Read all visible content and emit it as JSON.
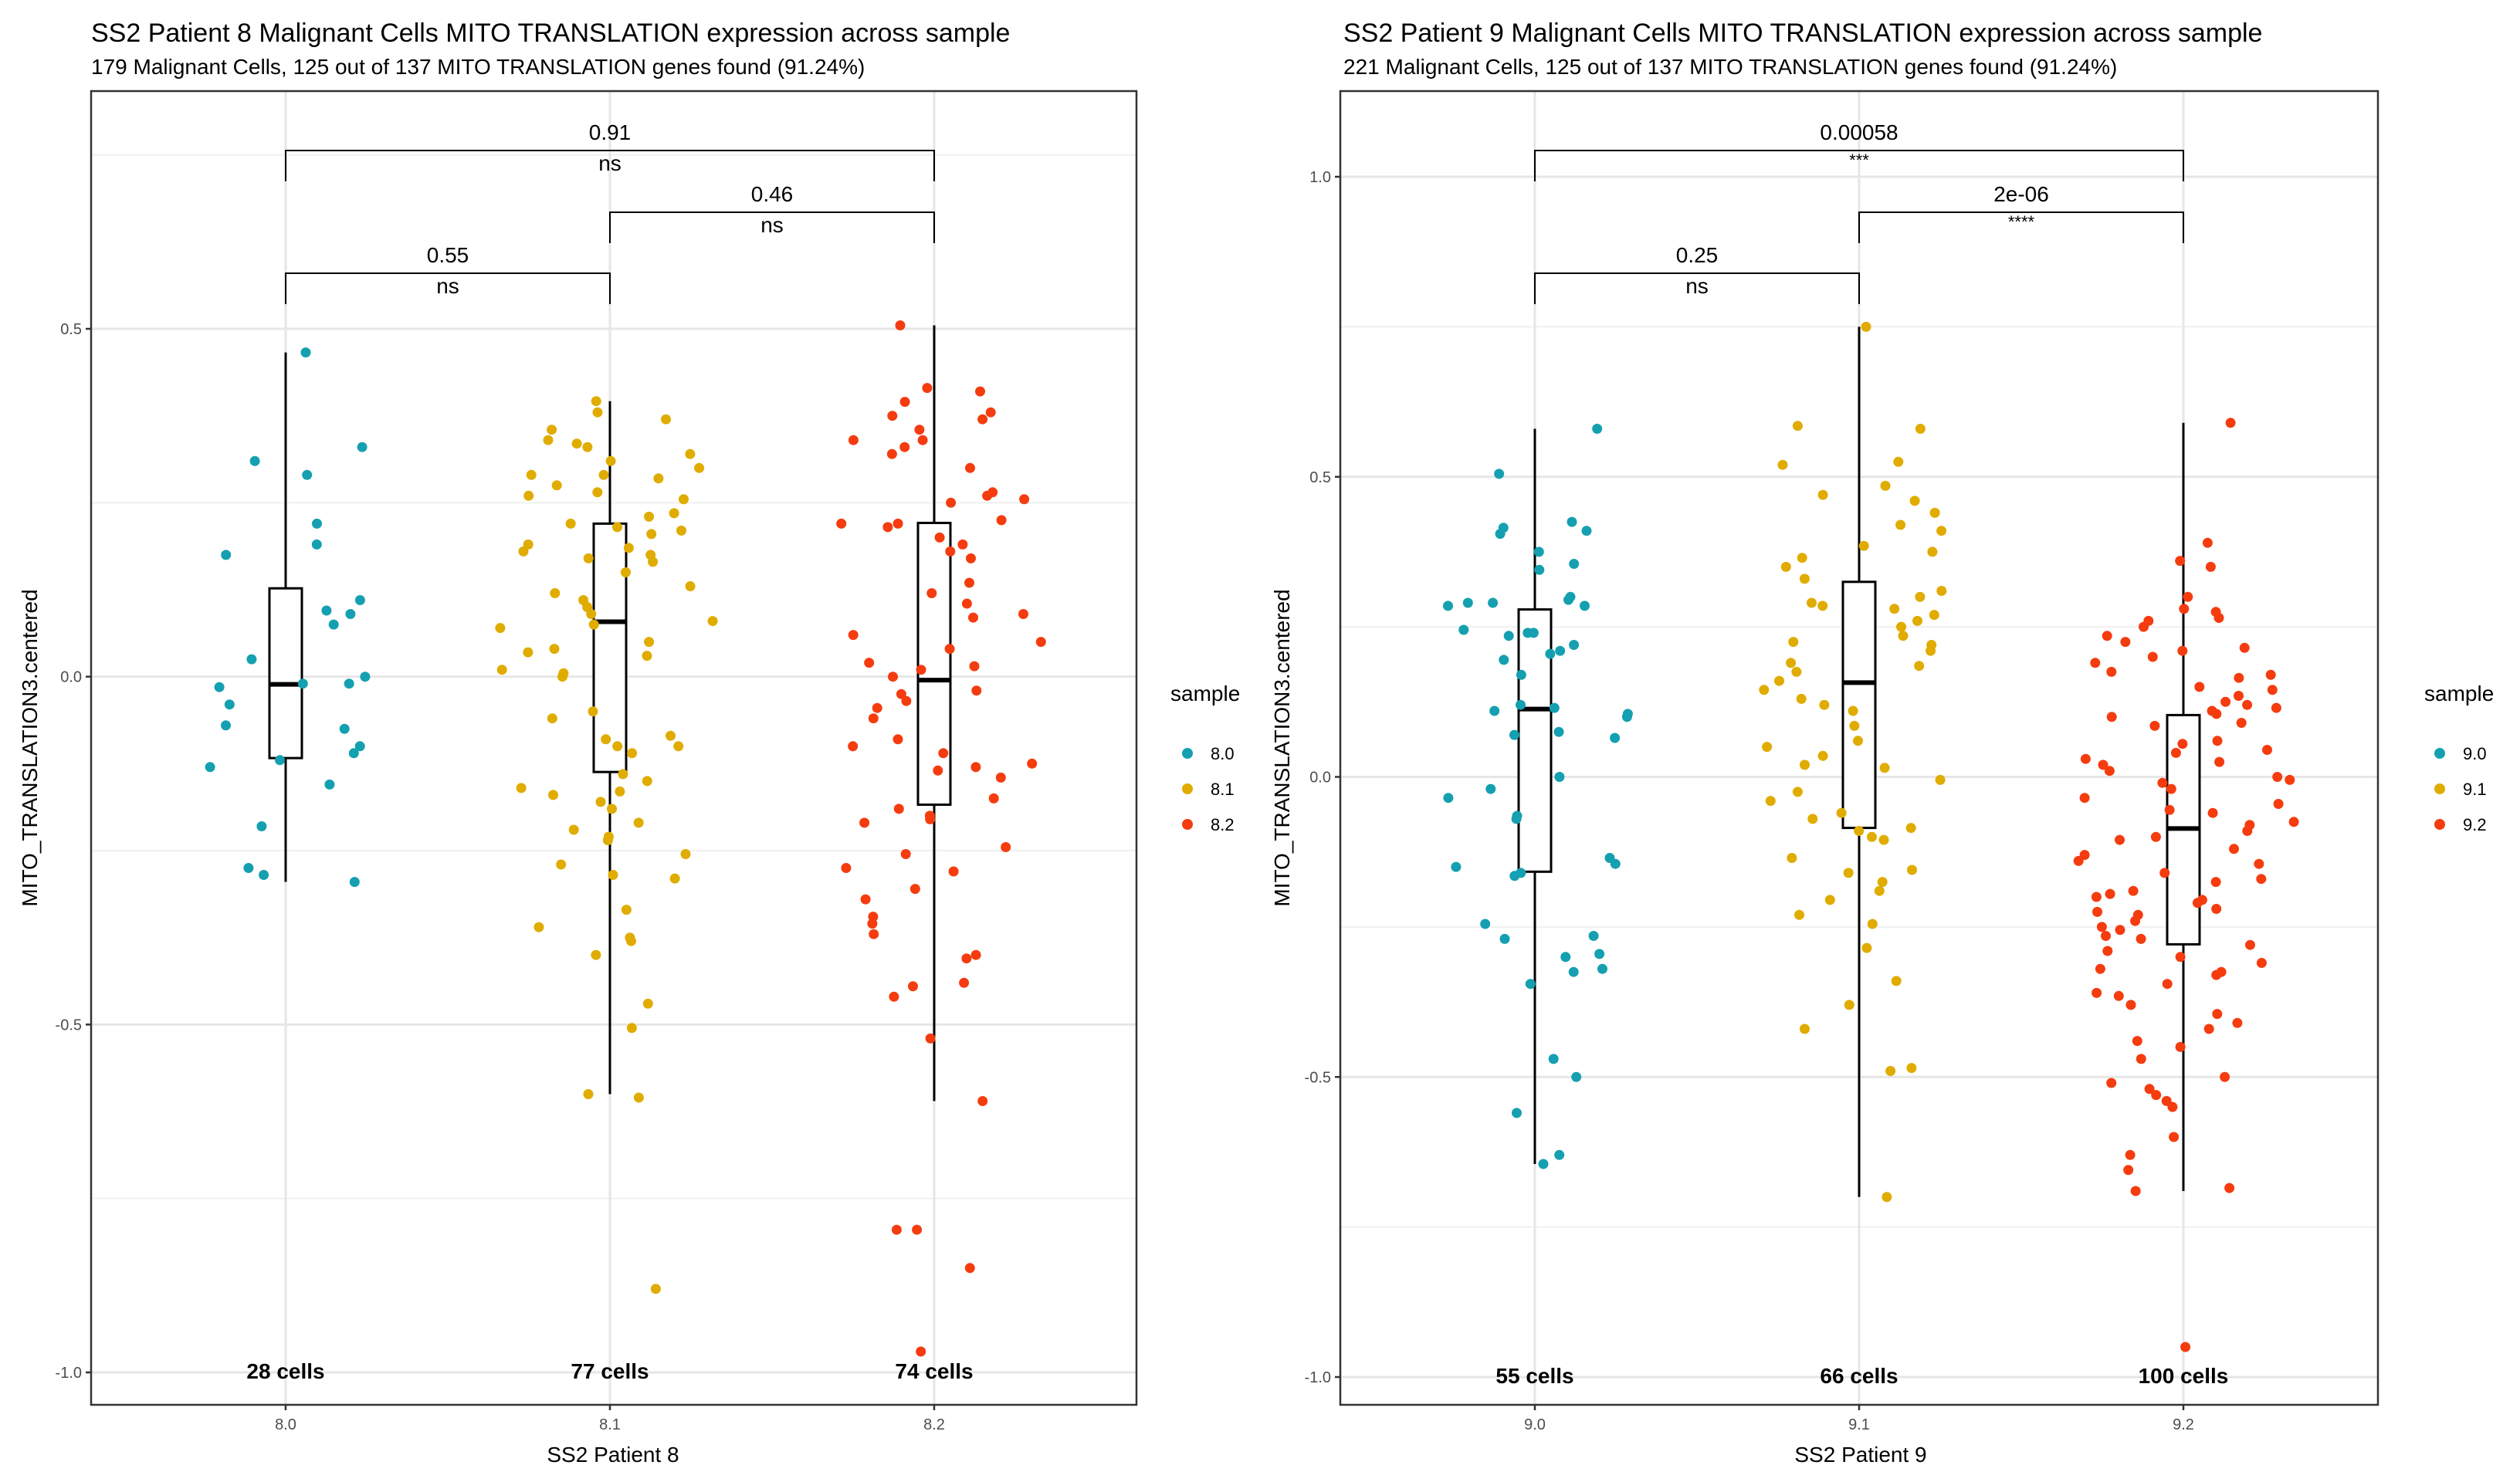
{
  "chart_data": [
    {
      "type": "scatter",
      "subtype": "boxplot-with-jitter",
      "title": "SS2 Patient 8 Malignant Cells MITO TRANSLATION expression across sample",
      "subtitle": "179 Malignant Cells, 125 out of 137 MITO TRANSLATION genes found (91.24%)",
      "xlabel": "SS2 Patient 8",
      "ylabel": "MITO_TRANSLATION3.centered",
      "ylim": [
        -1.05,
        0.835
      ],
      "yticks": [
        0.5,
        0.0,
        -0.5,
        -1.0
      ],
      "ytick_labels": [
        "0.5",
        "0.0",
        "-0.5",
        "-1.0"
      ],
      "categories": [
        "8.0",
        "8.1",
        "8.2"
      ],
      "grid": true,
      "legend": {
        "title": "sample",
        "position": "right",
        "entries": [
          "8.0",
          "8.1",
          "8.2"
        ]
      },
      "colors": [
        "#14A0B0",
        "#E0AC00",
        "#F53C0F"
      ],
      "cell_counts": [
        "28 cells",
        "77 cells",
        "74 cells"
      ],
      "boxes": [
        {
          "category": "8.0",
          "whisker_low": -0.295,
          "q1": -0.117,
          "median": -0.011,
          "q3": 0.127,
          "whisker_high": 0.466
        },
        {
          "category": "8.1",
          "whisker_low": -0.6,
          "q1": -0.137,
          "median": 0.079,
          "q3": 0.22,
          "whisker_high": 0.396
        },
        {
          "category": "8.2",
          "whisker_low": -0.61,
          "q1": -0.184,
          "median": -0.005,
          "q3": 0.221,
          "whisker_high": 0.505
        }
      ],
      "points": [
        {
          "category": "8.0",
          "values": [
            0.466,
            0.31,
            0.29,
            0.33,
            0.22,
            0.19,
            0.175,
            0.11,
            0.095,
            0.09,
            0.075,
            0.025,
            -0.01,
            -0.015,
            -0.01,
            -0.04,
            -0.07,
            -0.075,
            -0.1,
            -0.11,
            -0.13,
            -0.12,
            -0.155,
            -0.215,
            -0.275,
            -0.285,
            -0.295,
            0.0
          ]
        },
        {
          "category": "8.1",
          "values": [
            0.396,
            0.38,
            0.37,
            0.355,
            0.34,
            0.335,
            0.33,
            0.31,
            0.3,
            0.29,
            0.285,
            0.275,
            0.265,
            0.255,
            0.235,
            0.22,
            0.215,
            0.21,
            0.205,
            0.19,
            0.185,
            0.18,
            0.175,
            0.17,
            0.165,
            0.12,
            0.11,
            0.1,
            0.09,
            0.08,
            0.075,
            0.07,
            0.04,
            0.035,
            0.03,
            0.01,
            0.005,
            0.0,
            -0.05,
            -0.06,
            -0.085,
            -0.09,
            -0.1,
            -0.1,
            -0.11,
            -0.15,
            -0.16,
            -0.165,
            -0.18,
            -0.19,
            -0.21,
            -0.22,
            -0.235,
            -0.255,
            -0.27,
            -0.285,
            -0.29,
            -0.335,
            -0.36,
            -0.375,
            -0.38,
            -0.4,
            -0.47,
            -0.505,
            -0.6,
            -0.605,
            -0.88,
            -0.23,
            -0.17,
            -0.14,
            0.05,
            0.13,
            0.15,
            0.23,
            0.26,
            0.32,
            0.29
          ]
        },
        {
          "category": "8.2",
          "values": [
            0.505,
            0.415,
            0.41,
            0.395,
            0.38,
            0.375,
            0.37,
            0.355,
            0.34,
            0.34,
            0.33,
            0.3,
            0.265,
            0.26,
            0.255,
            0.25,
            0.225,
            0.22,
            0.22,
            0.215,
            0.2,
            0.19,
            0.17,
            0.135,
            0.12,
            0.105,
            0.09,
            0.085,
            0.06,
            0.04,
            0.02,
            0.015,
            0.01,
            0.0,
            -0.02,
            -0.025,
            -0.035,
            -0.045,
            -0.09,
            -0.1,
            -0.11,
            -0.125,
            -0.13,
            -0.135,
            -0.145,
            -0.175,
            -0.19,
            -0.2,
            -0.205,
            -0.21,
            -0.245,
            -0.255,
            -0.275,
            -0.28,
            -0.305,
            -0.32,
            -0.345,
            -0.355,
            -0.37,
            -0.4,
            -0.405,
            -0.44,
            -0.445,
            -0.46,
            -0.52,
            -0.61,
            -0.795,
            -0.795,
            -0.85,
            -0.97,
            0.05,
            -0.06,
            0.32,
            0.18
          ]
        }
      ],
      "comparisons": [
        {
          "groups": [
            "8.0",
            "8.2"
          ],
          "p_value": "0.91",
          "label": "ns"
        },
        {
          "groups": [
            "8.1",
            "8.2"
          ],
          "p_value": "0.46",
          "label": "ns"
        },
        {
          "groups": [
            "8.0",
            "8.1"
          ],
          "p_value": "0.55",
          "label": "ns"
        }
      ]
    },
    {
      "type": "scatter",
      "subtype": "boxplot-with-jitter",
      "title": "SS2 Patient 9 Malignant Cells MITO TRANSLATION expression across sample",
      "subtitle": "221 Malignant Cells, 125 out of 137 MITO TRANSLATION genes found (91.24%)",
      "xlabel": "SS2 Patient 9",
      "ylabel": "MITO_TRANSLATION3.centered",
      "ylim": [
        -1.04,
        1.14
      ],
      "yticks": [
        1.0,
        0.5,
        0.0,
        -0.5,
        -1.0
      ],
      "ytick_labels": [
        "1.0",
        "0.5",
        "0.0",
        "-0.5",
        "-1.0"
      ],
      "categories": [
        "9.0",
        "9.1",
        "9.2"
      ],
      "grid": true,
      "legend": {
        "title": "sample",
        "position": "right",
        "entries": [
          "9.0",
          "9.1",
          "9.2"
        ]
      },
      "colors": [
        "#14A0B0",
        "#E0AC00",
        "#F53C0F"
      ],
      "cell_counts": [
        "55 cells",
        "66 cells",
        "100 cells"
      ],
      "boxes": [
        {
          "category": "9.0",
          "whisker_low": -0.645,
          "q1": -0.158,
          "median": 0.113,
          "q3": 0.279,
          "whisker_high": 0.58
        },
        {
          "category": "9.1",
          "whisker_low": -0.7,
          "q1": -0.085,
          "median": 0.157,
          "q3": 0.325,
          "whisker_high": 0.75
        },
        {
          "category": "9.2",
          "whisker_low": -0.69,
          "q1": -0.279,
          "median": -0.086,
          "q3": 0.103,
          "whisker_high": 0.59
        }
      ],
      "points": [
        {
          "category": "9.0",
          "values": [
            0.58,
            0.505,
            0.425,
            0.415,
            0.41,
            0.405,
            0.375,
            0.355,
            0.345,
            0.3,
            0.295,
            0.29,
            0.29,
            0.285,
            0.285,
            0.245,
            0.24,
            0.24,
            0.235,
            0.22,
            0.21,
            0.205,
            0.195,
            0.17,
            0.12,
            0.115,
            0.11,
            0.105,
            0.1,
            0.075,
            0.07,
            0.065,
            -0.02,
            -0.035,
            -0.065,
            -0.07,
            -0.135,
            -0.145,
            -0.15,
            -0.16,
            -0.165,
            -0.245,
            -0.265,
            -0.27,
            -0.295,
            -0.3,
            -0.32,
            -0.325,
            -0.345,
            -0.47,
            -0.5,
            -0.56,
            -0.63,
            -0.645,
            0.0
          ]
        },
        {
          "category": "9.1",
          "values": [
            0.75,
            0.585,
            0.58,
            0.525,
            0.52,
            0.485,
            0.47,
            0.46,
            0.42,
            0.41,
            0.385,
            0.375,
            0.365,
            0.35,
            0.33,
            0.31,
            0.3,
            0.29,
            0.285,
            0.27,
            0.26,
            0.25,
            0.235,
            0.225,
            0.22,
            0.21,
            0.185,
            0.175,
            0.16,
            0.145,
            0.13,
            0.12,
            0.085,
            0.06,
            0.05,
            0.035,
            0.015,
            -0.005,
            -0.025,
            -0.04,
            -0.07,
            -0.085,
            -0.09,
            -0.105,
            -0.1,
            -0.135,
            -0.155,
            -0.16,
            -0.175,
            -0.19,
            -0.205,
            -0.23,
            -0.245,
            -0.285,
            -0.34,
            -0.38,
            -0.42,
            -0.485,
            -0.49,
            -0.7,
            0.02,
            0.19,
            0.28,
            0.44,
            -0.06,
            0.11
          ]
        },
        {
          "category": "9.2",
          "values": [
            0.59,
            0.39,
            0.36,
            0.35,
            0.3,
            0.28,
            0.275,
            0.265,
            0.26,
            0.25,
            0.235,
            0.225,
            0.215,
            0.21,
            0.2,
            0.19,
            0.175,
            0.17,
            0.165,
            0.15,
            0.145,
            0.135,
            0.125,
            0.12,
            0.115,
            0.11,
            0.105,
            0.1,
            0.09,
            0.085,
            0.06,
            0.055,
            0.045,
            0.04,
            0.03,
            0.025,
            0.02,
            0.01,
            -0.005,
            -0.01,
            -0.02,
            -0.035,
            -0.045,
            -0.055,
            -0.06,
            -0.075,
            -0.08,
            -0.09,
            -0.1,
            -0.105,
            -0.12,
            -0.13,
            -0.14,
            -0.145,
            -0.16,
            -0.17,
            -0.175,
            -0.19,
            -0.195,
            -0.2,
            -0.205,
            -0.21,
            -0.22,
            -0.225,
            -0.23,
            -0.24,
            -0.25,
            -0.255,
            -0.265,
            -0.27,
            -0.28,
            -0.29,
            -0.3,
            -0.31,
            -0.32,
            -0.325,
            -0.33,
            -0.345,
            -0.36,
            -0.365,
            -0.38,
            -0.395,
            -0.41,
            -0.42,
            -0.44,
            -0.45,
            -0.47,
            -0.5,
            -0.51,
            -0.52,
            -0.53,
            -0.54,
            -0.55,
            -0.6,
            -0.63,
            -0.655,
            -0.685,
            -0.69,
            -0.95,
            0.0
          ]
        }
      ],
      "comparisons": [
        {
          "groups": [
            "9.0",
            "9.2"
          ],
          "p_value": "0.00058",
          "label": "***"
        },
        {
          "groups": [
            "9.1",
            "9.2"
          ],
          "p_value": "2e-06",
          "label": "****"
        },
        {
          "groups": [
            "9.0",
            "9.1"
          ],
          "p_value": "0.25",
          "label": "ns"
        }
      ]
    }
  ]
}
